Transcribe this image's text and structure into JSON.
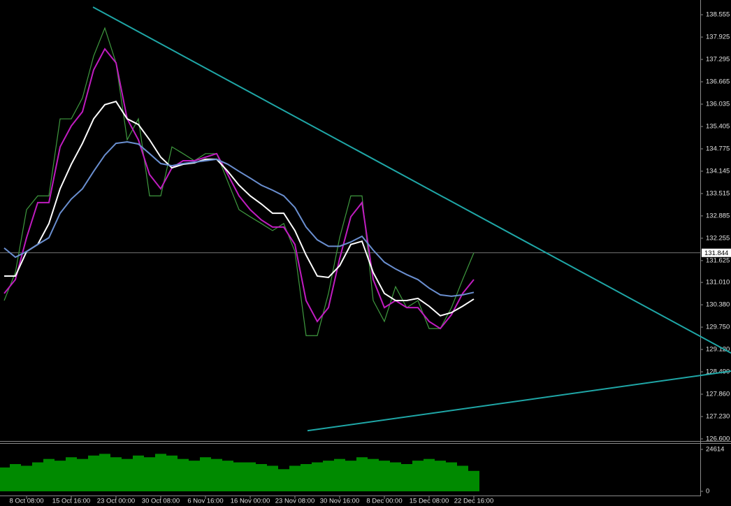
{
  "chart_data": [
    {
      "type": "line",
      "categories": [
        null,
        null,
        "8 Oct 08:00",
        null,
        null,
        null,
        "15 Oct 16:00",
        null,
        null,
        null,
        "23 Oct 00:00",
        null,
        null,
        null,
        "30 Oct 08:00",
        null,
        null,
        null,
        "6 Nov 16:00",
        null,
        null,
        null,
        "16 Nov 00:00",
        null,
        null,
        null,
        "23 Nov 08:00",
        null,
        null,
        null,
        "30 Nov 16:00",
        null,
        null,
        null,
        "8 Dec 00:00",
        null,
        null,
        null,
        "15 Dec 08:00",
        null,
        null,
        null,
        "22 Dec 16:00"
      ],
      "series": [
        {
          "color": "#3f9a3f",
          "values": [
            130.5,
            131.29,
            133.06,
            133.45,
            133.45,
            135.62,
            135.62,
            136.21,
            137.39,
            138.18,
            137.2,
            135.03,
            135.62,
            133.45,
            133.45,
            134.83,
            134.64,
            134.44,
            134.64,
            134.64,
            133.85,
            133.06,
            132.86,
            132.67,
            132.47,
            132.67,
            131.88,
            129.51,
            129.51,
            130.7,
            132.27,
            133.45,
            133.45,
            130.5,
            129.91,
            130.89,
            130.3,
            130.5,
            129.71,
            129.71,
            130.3,
            131.09,
            131.844
          ]
        },
        {
          "color": "#c01cc0",
          "values": [
            130.7,
            131.09,
            132.27,
            133.26,
            133.26,
            134.83,
            135.42,
            135.82,
            137.0,
            137.59,
            137.2,
            135.62,
            135.03,
            134.05,
            133.65,
            134.24,
            134.44,
            134.44,
            134.54,
            134.64,
            134.05,
            133.45,
            133.06,
            132.77,
            132.57,
            132.57,
            132.08,
            130.5,
            129.91,
            130.3,
            131.68,
            132.86,
            133.26,
            131.09,
            130.3,
            130.5,
            130.3,
            130.3,
            129.91,
            129.71,
            130.1,
            130.7,
            131.09
          ]
        },
        {
          "color": "#ffffff",
          "values": [
            131.19,
            131.19,
            131.88,
            132.08,
            132.67,
            133.65,
            134.34,
            134.93,
            135.62,
            136.02,
            136.11,
            135.62,
            135.46,
            135.03,
            134.54,
            134.24,
            134.34,
            134.38,
            134.48,
            134.48,
            134.14,
            133.75,
            133.45,
            133.22,
            132.96,
            132.96,
            132.47,
            131.78,
            131.19,
            131.15,
            131.48,
            132.08,
            132.17,
            131.29,
            130.7,
            130.5,
            130.5,
            130.56,
            130.34,
            130.07,
            130.16,
            130.34,
            130.54
          ]
        },
        {
          "color": "#6a8fd0",
          "values": [
            131.98,
            131.72,
            131.88,
            132.08,
            132.27,
            132.96,
            133.36,
            133.65,
            134.14,
            134.6,
            134.93,
            134.97,
            134.91,
            134.64,
            134.36,
            134.3,
            134.36,
            134.4,
            134.44,
            134.48,
            134.34,
            134.14,
            133.95,
            133.75,
            133.61,
            133.45,
            133.12,
            132.57,
            132.21,
            132.03,
            132.03,
            132.15,
            132.31,
            131.92,
            131.58,
            131.39,
            131.23,
            131.09,
            130.85,
            130.66,
            130.62,
            130.66,
            130.73
          ]
        }
      ],
      "trendlines": [
        {
          "color": "#1fa7a7",
          "x": [
            7.94,
            65
          ],
          "y": [
            138.77,
            129.02
          ]
        },
        {
          "color": "#1fa7a7",
          "x": [
            27.125,
            65
          ],
          "y": [
            126.83,
            128.51
          ]
        }
      ],
      "last_price": 131.844,
      "ylim": [
        126.56,
        138.97
      ],
      "yticks": [
        138.555,
        137.925,
        137.295,
        136.665,
        136.035,
        135.405,
        134.775,
        134.145,
        133.515,
        132.885,
        132.255,
        131.625,
        {
          "value": 131.01,
          "label": "131.010"
        },
        {
          "value": 130.38,
          "label": "130.380"
        },
        {
          "value": 129.75,
          "label": "129.750"
        },
        {
          "value": 129.12,
          "label": "129.120"
        },
        {
          "value": 128.49,
          "label": "128.490"
        },
        {
          "value": 127.86,
          "label": "127.860"
        },
        {
          "value": 127.23,
          "label": "127.230"
        },
        {
          "value": 126.6,
          "label": "126.600"
        }
      ],
      "grid": false
    },
    {
      "type": "bar",
      "color": "#008a00",
      "values": [
        14000,
        16000,
        15000,
        17000,
        19000,
        18000,
        20000,
        19000,
        21000,
        22000,
        20000,
        19000,
        21000,
        20000,
        22000,
        21000,
        19000,
        18000,
        20000,
        19000,
        18000,
        17000,
        17000,
        16000,
        15000,
        13000,
        15000,
        16000,
        17000,
        18000,
        19000,
        18000,
        20000,
        19000,
        18000,
        17000,
        16000,
        18000,
        19000,
        18000,
        17000,
        15000,
        12000
      ],
      "ylim": [
        0,
        28400
      ],
      "yticks": [
        0,
        24614
      ]
    }
  ]
}
